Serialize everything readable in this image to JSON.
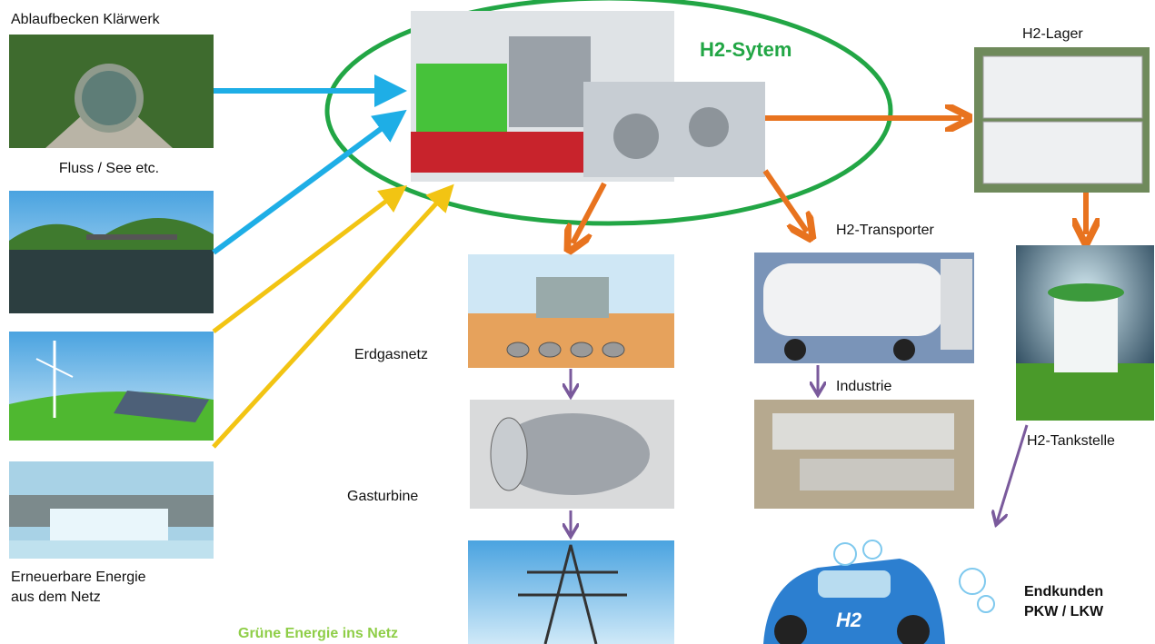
{
  "system": {
    "title": "H2-Sytem"
  },
  "sources": [
    {
      "label": "Ablaufbecken Klärwerk"
    },
    {
      "label": "Fluss / See etc."
    },
    {
      "label_lines": [
        "Erneuerbare Energie",
        "aus dem Netz"
      ]
    }
  ],
  "outputs": {
    "storage": "H2-Lager",
    "transporter": "H2-Transporter",
    "gas_grid": "Erdgasnetz",
    "gas_turbine": "Gasturbine",
    "green_power": "Grüne Energie ins Netz",
    "industry": "Industrie",
    "filling_station": "H2-Tankstelle",
    "end_customers": [
      "Endkunden",
      "PKW / LKW"
    ],
    "car_badge": "H2"
  }
}
